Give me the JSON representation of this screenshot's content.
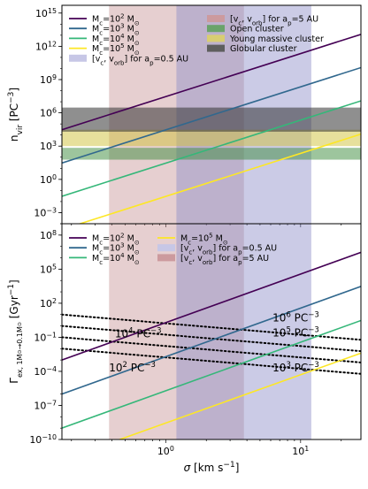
{
  "chart_data": [
    {
      "type": "line",
      "id": "top",
      "xlabel": "",
      "ylabel_main": "n",
      "ylabel_sub": "vir",
      "ylabel_unit": " [PC",
      "ylabel_unit_sup": "−3",
      "ylabel_unit_close": "]",
      "xscale": "log",
      "yscale": "log",
      "xlim": [
        0.17,
        28
      ],
      "ylim": [
        0.0001,
        5000000000000000.0
      ],
      "xticks": [],
      "yticks": [
        {
          "value": 1000000000000000.0,
          "base": "10",
          "exp": "15"
        },
        {
          "value": 1000000000000.0,
          "base": "10",
          "exp": "12"
        },
        {
          "value": 1000000000.0,
          "base": "10",
          "exp": "9"
        },
        {
          "value": 1000000.0,
          "base": "10",
          "exp": "6"
        },
        {
          "value": 1000.0,
          "base": "10",
          "exp": "3"
        },
        {
          "value": 1,
          "base": "10",
          "exp": "0"
        },
        {
          "value": 0.001,
          "base": "10",
          "exp": "−3"
        }
      ],
      "bands_x": [
        {
          "color": "#c0868a",
          "alpha": 0.4,
          "x0": 0.38,
          "x1": 3.8
        },
        {
          "color": "#8c8cc8",
          "alpha": 0.45,
          "x0": 1.2,
          "x1": 12
        }
      ],
      "bands_y": [
        {
          "color": "#3c8c3c",
          "alpha": 0.5,
          "y0": 60,
          "y1": 700
        },
        {
          "color": "#cfc23a",
          "alpha": 0.5,
          "y0": 1000,
          "y1": 30000
        },
        {
          "color": "#333333",
          "alpha": 0.55,
          "y0": 20000,
          "y1": 3000000
        }
      ],
      "series": [
        {
          "color": "#440154",
          "x": [
            0.17,
            28
          ],
          "y": [
            30000,
            12000000000000.0
          ]
        },
        {
          "color": "#31688e",
          "x": [
            0.17,
            28
          ],
          "y": [
            30,
            12000000000.0
          ]
        },
        {
          "color": "#35b779",
          "x": [
            0.17,
            28
          ],
          "y": [
            0.03,
            12000000.0
          ]
        },
        {
          "color": "#fde725",
          "x": [
            0.17,
            28
          ],
          "y": [
            3e-05,
            12000
          ]
        }
      ],
      "legend_left": [
        {
          "kind": "line",
          "color": "#440154",
          "label": "M",
          "sub": "c",
          "mid": "=10",
          "sup": "2",
          "tail": " M",
          "tailsub": "⊙"
        },
        {
          "kind": "line",
          "color": "#31688e",
          "label": "M",
          "sub": "c",
          "mid": "=10",
          "sup": "3",
          "tail": " M",
          "tailsub": "⊙"
        },
        {
          "kind": "line",
          "color": "#35b779",
          "label": "M",
          "sub": "c",
          "mid": "=10",
          "sup": "4",
          "tail": " M",
          "tailsub": "⊙"
        },
        {
          "kind": "line",
          "color": "#fde725",
          "label": "M",
          "sub": "c",
          "mid": "=10",
          "sup": "5",
          "tail": " M",
          "tailsub": "⊙"
        },
        {
          "kind": "patch",
          "color": "#c7c7e6",
          "label": "[v",
          "sub": "c",
          "mid": ", v",
          "sup": "",
          "tail": "orb",
          "tailsub": "",
          "extra": "] for a",
          "extrasub": "p",
          "extratail": "=0.5 AU"
        }
      ],
      "legend_right": [
        {
          "color": "#cc9a9e",
          "label": "[v",
          "sub": "c",
          "mid": ", v",
          "mid2sub": "orb",
          "tail": "] for a",
          "tailsub": "p",
          "extratail": "=5 AU"
        },
        {
          "color": "#6aa36a",
          "label": "Open cluster"
        },
        {
          "color": "#d8cd72",
          "label": "Young massive cluster"
        },
        {
          "color": "#5e5e5e",
          "label": "Globular cluster"
        }
      ]
    },
    {
      "type": "line",
      "id": "bottom",
      "xlabel_main": "σ",
      "xlabel_unit": " [km s",
      "xlabel_unit_sup": "−1",
      "xlabel_unit_close": "]",
      "ylabel_main": "Γ",
      "ylabel_sub": "ex, 1M",
      "ylabel_sub2": "⊙",
      "ylabel_sub3": "→0.1M",
      "ylabel_sub4": "⊙",
      "ylabel_unit": " [Gyr",
      "ylabel_unit_sup": "−1",
      "ylabel_unit_close": "]",
      "xscale": "log",
      "yscale": "log",
      "xlim": [
        0.17,
        28
      ],
      "ylim": [
        1e-10,
        1000000000.0
      ],
      "xticks": [
        {
          "value": 1,
          "base": "10",
          "exp": "0"
        },
        {
          "value": 10,
          "base": "10",
          "exp": "1"
        }
      ],
      "yticks": [
        {
          "value": 100000000.0,
          "base": "10",
          "exp": "8"
        },
        {
          "value": 100000.0,
          "base": "10",
          "exp": "5"
        },
        {
          "value": 100,
          "base": "10",
          "exp": "2"
        },
        {
          "value": 0.1,
          "base": "10",
          "exp": "−1"
        },
        {
          "value": 0.0001,
          "base": "10",
          "exp": "−4"
        },
        {
          "value": 1e-07,
          "base": "10",
          "exp": "−7"
        },
        {
          "value": 1e-10,
          "base": "10",
          "exp": "−10"
        }
      ],
      "bands_x": [
        {
          "color": "#c0868a",
          "alpha": 0.4,
          "x0": 0.38,
          "x1": 3.8
        },
        {
          "color": "#8c8cc8",
          "alpha": 0.45,
          "x0": 1.2,
          "x1": 12
        }
      ],
      "series": [
        {
          "color": "#440154",
          "x": [
            0.17,
            28
          ],
          "y": [
            0.001,
            3000000
          ]
        },
        {
          "color": "#31688e",
          "x": [
            0.17,
            28
          ],
          "y": [
            1e-06,
            3000
          ]
        },
        {
          "color": "#35b779",
          "x": [
            0.17,
            28
          ],
          "y": [
            1e-09,
            3
          ]
        },
        {
          "color": "#fde725",
          "x": [
            0.17,
            28
          ],
          "y": [
            1.5e-12,
            0.004
          ]
        }
      ],
      "dotted": [
        {
          "x": [
            0.17,
            28
          ],
          "y": [
            10,
            0.06
          ]
        },
        {
          "x": [
            0.17,
            28
          ],
          "y": [
            1,
            0.006
          ]
        },
        {
          "x": [
            0.17,
            28
          ],
          "y": [
            0.1,
            0.0006
          ]
        },
        {
          "x": [
            0.17,
            28
          ],
          "y": [
            0.01,
            6e-05
          ]
        }
      ],
      "annotations": [
        {
          "x": 6.2,
          "y": 2.5,
          "base": "10",
          "exp": "6",
          "unit": " PC",
          "unitexp": "−3"
        },
        {
          "x": 6.2,
          "y": 0.12,
          "base": "10",
          "exp": "5",
          "unit": " PC",
          "unitexp": "−3"
        },
        {
          "x": 0.42,
          "y": 0.1,
          "base": "10",
          "exp": "4",
          "unit": " PC",
          "unitexp": "−3"
        },
        {
          "x": 0.38,
          "y": 0.0001,
          "base": "10",
          "exp": "2",
          "unit": " PC",
          "unitexp": "−3"
        },
        {
          "x": 6.2,
          "y": 0.0001,
          "base": "10",
          "exp": "3",
          "unit": " PC",
          "unitexp": "−3"
        }
      ],
      "legend": [
        {
          "col": 0,
          "kind": "line",
          "color": "#440154",
          "label": "M",
          "sub": "c",
          "mid": "=10",
          "sup": "2",
          "tail": " M",
          "tailsub": "⊙"
        },
        {
          "col": 0,
          "kind": "line",
          "color": "#31688e",
          "label": "M",
          "sub": "c",
          "mid": "=10",
          "sup": "3",
          "tail": " M",
          "tailsub": "⊙"
        },
        {
          "col": 0,
          "kind": "line",
          "color": "#35b779",
          "label": "M",
          "sub": "c",
          "mid": "=10",
          "sup": "4",
          "tail": " M",
          "tailsub": "⊙"
        },
        {
          "col": 1,
          "kind": "line",
          "color": "#fde725",
          "label": "M",
          "sub": "c",
          "mid": "=10",
          "sup": "5",
          "tail": " M",
          "tailsub": "⊙"
        },
        {
          "col": 1,
          "kind": "patch",
          "color": "#c7c7e6",
          "text": "[v",
          "s1": "c",
          "t2": ", v",
          "s2": "orb",
          "t3": "] for a",
          "s3": "p",
          "t4": "=0.5 AU"
        },
        {
          "col": 1,
          "kind": "patch",
          "color": "#cc9a9e",
          "text": "[v",
          "s1": "c",
          "t2": ", v",
          "s2": "orb",
          "t3": "] for a",
          "s3": "p",
          "t4": "=5 AU"
        }
      ]
    }
  ]
}
